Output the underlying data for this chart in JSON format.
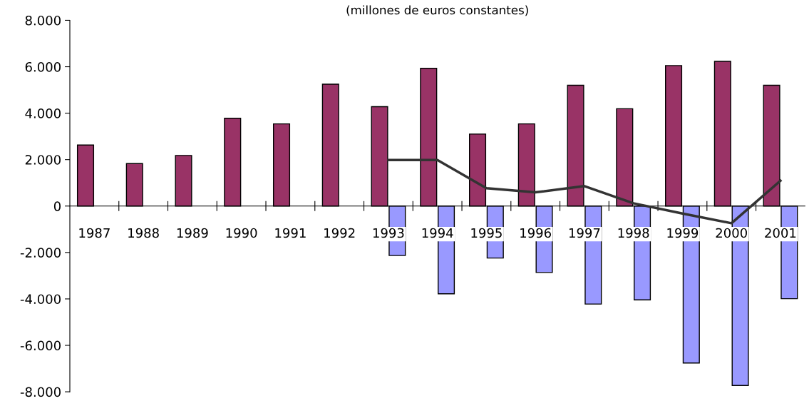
{
  "chart_data": {
    "type": "bar",
    "title": "(millones de euros constantes)",
    "categories": [
      "1987",
      "1988",
      "1989",
      "1990",
      "1991",
      "1992",
      "1993",
      "1994",
      "1995",
      "1996",
      "1997",
      "1998",
      "1999",
      "2000",
      "2001"
    ],
    "series": [
      {
        "color": "#993366",
        "values": [
          2630,
          1830,
          2180,
          3780,
          3540,
          5250,
          4280,
          5930,
          3100,
          3540,
          5200,
          4190,
          6050,
          6230,
          5200
        ]
      },
      {
        "color": "#9999ff",
        "values": [
          null,
          null,
          null,
          null,
          null,
          null,
          -2130,
          -3780,
          -2240,
          -2860,
          -4220,
          -4040,
          -6760,
          -7730,
          -3990
        ]
      },
      {
        "type": "line",
        "color": "#333333",
        "values": [
          null,
          null,
          null,
          null,
          null,
          null,
          1980,
          1980,
          770,
          590,
          860,
          120,
          -320,
          -740,
          1090
        ]
      }
    ],
    "ylim": [
      -8000,
      8000
    ],
    "yticks": [
      {
        "value": -8000,
        "label": "-8.000"
      },
      {
        "value": -6000,
        "label": "-6.000"
      },
      {
        "value": -4000,
        "label": "-4.000"
      },
      {
        "value": -2000,
        "label": "-2.000"
      },
      {
        "value": 0,
        "label": "0"
      },
      {
        "value": 2000,
        "label": "2.000"
      },
      {
        "value": 4000,
        "label": "4.000"
      },
      {
        "value": 6000,
        "label": "6.000"
      },
      {
        "value": 8000,
        "label": "8.000"
      }
    ],
    "grid": false
  }
}
